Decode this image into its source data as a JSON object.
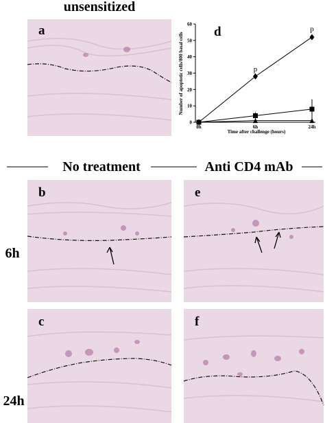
{
  "figure": {
    "title": "unsensitized",
    "column_headers": [
      "No treatment",
      "Anti CD4 mAb"
    ],
    "row_labels": [
      "6h",
      "24h"
    ],
    "panel_letters": {
      "a": "a",
      "b": "b",
      "c": "c",
      "e": "e",
      "f": "f"
    }
  },
  "chart_data": {
    "type": "line",
    "panel_letter": "d",
    "x_label": "Time after challenge (hours)",
    "y_label": "Number of apoptotic cells/800 basal cells",
    "categories": [
      "0h",
      "6h",
      "24h"
    ],
    "ylim": [
      0,
      60
    ],
    "yticks": [
      0,
      10,
      20,
      30,
      40,
      50,
      60
    ],
    "series": [
      {
        "marker": "diamond",
        "color": "#000000",
        "values": [
          0,
          28,
          52
        ],
        "errors": [
          0,
          1,
          1.5
        ]
      },
      {
        "marker": "square",
        "color": "#000000",
        "values": [
          0,
          4,
          8
        ],
        "errors": [
          0,
          2,
          6
        ]
      },
      {
        "marker": "triangle",
        "color": "#000000",
        "values": [
          0,
          1,
          1
        ],
        "errors": [
          0,
          0.5,
          0.5
        ]
      }
    ],
    "annotations": [
      {
        "text": "p",
        "category": "6h"
      },
      {
        "text": "p",
        "category": "24h"
      }
    ]
  }
}
